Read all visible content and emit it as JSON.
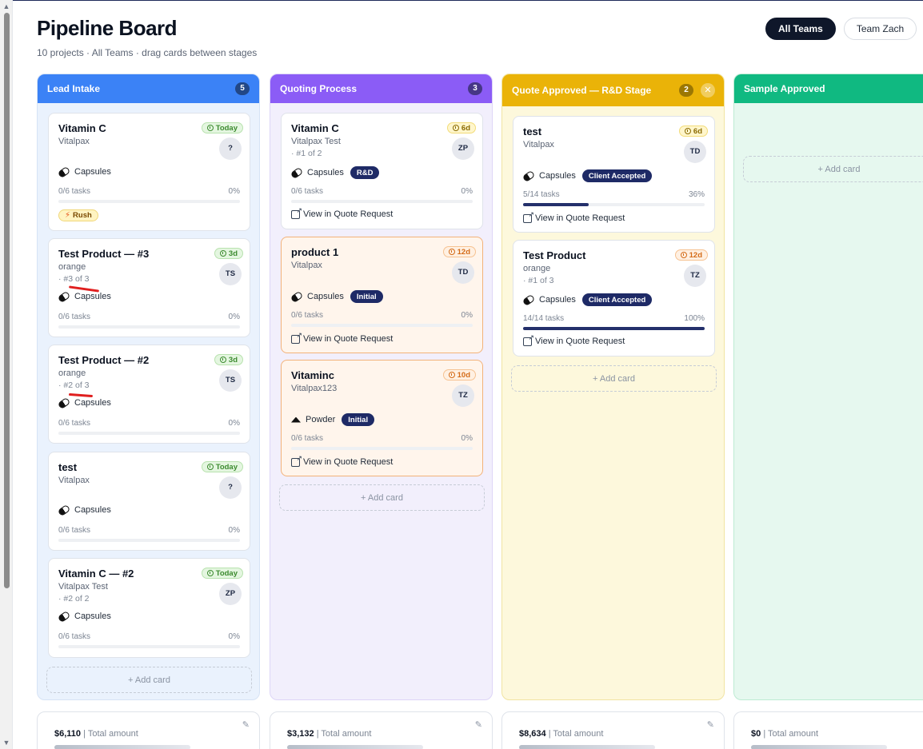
{
  "page": {
    "title": "Pipeline Board",
    "subtitle": "10 projects · All Teams · drag cards between stages"
  },
  "teams": [
    {
      "label": "All Teams",
      "active": true
    },
    {
      "label": "Team Zach",
      "active": false
    }
  ],
  "add_card_label": "+ Add card",
  "view_link_label": "View in Quote Request",
  "columns": [
    {
      "name": "Lead Intake",
      "count": "5",
      "color": "#3b82f6",
      "cards": [
        {
          "title": "Vitamin C",
          "subtitle": "Vitalpax",
          "due": "Today",
          "avatar": "?",
          "product": "Capsules",
          "tasks": "0/6 tasks",
          "percent": "0%",
          "progress": 0,
          "tag": "Rush"
        },
        {
          "title": "Test Product — #3",
          "subtitle": "orange",
          "seq": "· #3 of 3",
          "due": "3d",
          "avatar": "TS",
          "product": "Capsules",
          "tasks": "0/6 tasks",
          "percent": "0%",
          "progress": 0
        },
        {
          "title": "Test Product — #2",
          "subtitle": "orange",
          "seq": "· #2 of 3",
          "due": "3d",
          "avatar": "TS",
          "product": "Capsules",
          "tasks": "0/6 tasks",
          "percent": "0%",
          "progress": 0
        },
        {
          "title": "test",
          "subtitle": "Vitalpax",
          "due": "Today",
          "avatar": "?",
          "product": "Capsules",
          "tasks": "0/6 tasks",
          "percent": "0%",
          "progress": 0
        },
        {
          "title": "Vitamin C — #2",
          "subtitle": "Vitalpax Test",
          "seq": "· #2 of 2",
          "due": "Today",
          "avatar": "ZP",
          "product": "Capsules",
          "tasks": "0/6 tasks",
          "percent": "0%",
          "progress": 0
        }
      ]
    },
    {
      "name": "Quoting Process",
      "count": "3",
      "color": "#8b5cf6",
      "cards": [
        {
          "title": "Vitamin C",
          "subtitle": "Vitalpax Test",
          "seq": "· #1 of 2",
          "due": "6d",
          "avatar": "ZP",
          "product": "Capsules",
          "stage": "R&D",
          "tasks": "0/6 tasks",
          "percent": "0%",
          "progress": 0
        },
        {
          "title": "product 1",
          "subtitle": "Vitalpax",
          "due": "12d",
          "avatar": "TD",
          "product": "Capsules",
          "stage": "Initial",
          "tasks": "0/6 tasks",
          "percent": "0%",
          "progress": 0
        },
        {
          "title": "Vitaminc",
          "subtitle": "Vitalpax123",
          "due": "10d",
          "avatar": "TZ",
          "product": "Powder",
          "stage": "Initial",
          "tasks": "0/6 tasks",
          "percent": "0%",
          "progress": 0
        }
      ]
    },
    {
      "name": "Quote Approved — R&D Stage",
      "count": "2",
      "color": "#eab308",
      "cards": [
        {
          "title": "test",
          "subtitle": "Vitalpax",
          "due": "6d",
          "avatar": "TD",
          "product": "Capsules",
          "stage": "Client Accepted",
          "tasks": "5/14 tasks",
          "percent": "36%",
          "progress": 0.36
        },
        {
          "title": "Test Product",
          "subtitle": "orange",
          "seq": "· #1 of 3",
          "due": "12d",
          "avatar": "TZ",
          "product": "Capsules",
          "stage": "Client Accepted",
          "tasks": "14/14 tasks",
          "percent": "100%",
          "progress": 1.0
        }
      ]
    },
    {
      "name": "Sample Approved",
      "count": "",
      "color": "#10b981",
      "cards": []
    }
  ],
  "summaries": [
    {
      "amount": "$6,110",
      "label": "| Total amount"
    },
    {
      "amount": "$3,132",
      "label": "| Total amount"
    },
    {
      "amount": "$8,634",
      "label": "| Total amount"
    },
    {
      "amount": "$0",
      "label": "| Total amount"
    }
  ]
}
